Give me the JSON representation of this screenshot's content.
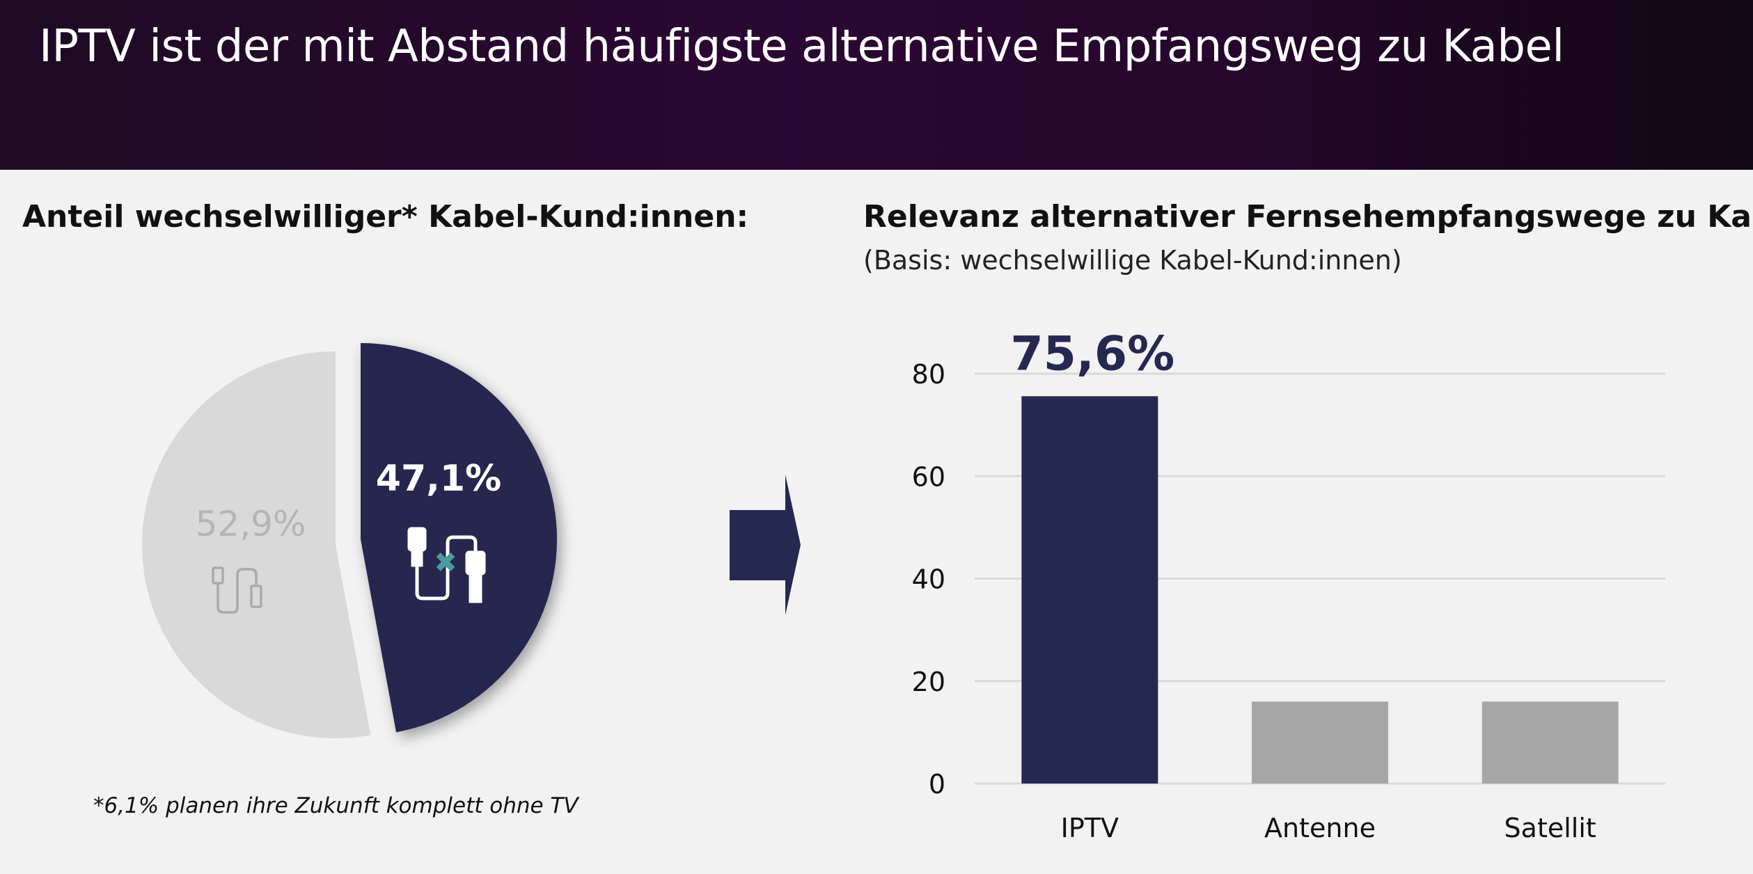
{
  "header": {
    "title": "IPTV ist der mit Abstand häufigste alternative Empfangsweg zu Kabel"
  },
  "left_panel": {
    "title": "Anteil wechselwilliger* Kabel-Kund:innen:",
    "footnote": "*6,1% planen ihre Zukunft komplett ohne TV"
  },
  "right_panel": {
    "title": "Relevanz alternativer Fernsehempfangswege zu Kabel:",
    "subtitle": "(Basis: wechselwillige Kabel-Kund:innen)"
  },
  "colors": {
    "navy": "#252850",
    "light_gray": "#d9d9d9",
    "bar_gray": "#a6a6a6",
    "teal": "#4a9aa0"
  },
  "chart_data": [
    {
      "type": "pie",
      "slices": [
        {
          "label": "47,1%",
          "value": 47.1,
          "color": "#252850",
          "icon": "cable-switch-icon"
        },
        {
          "label": "52,9%",
          "value": 52.9,
          "color": "#d9d9d9",
          "icon": "cable-icon"
        }
      ]
    },
    {
      "type": "bar",
      "categories": [
        "IPTV",
        "Antenne",
        "Satellit"
      ],
      "values": [
        75.6,
        16,
        16
      ],
      "colors": [
        "#252850",
        "#a6a6a6",
        "#a6a6a6"
      ],
      "ylim": [
        0,
        80
      ],
      "yticks": [
        0,
        20,
        40,
        60,
        80
      ],
      "grid": true,
      "annotation": {
        "category": "IPTV",
        "text": "75,6%"
      }
    }
  ]
}
